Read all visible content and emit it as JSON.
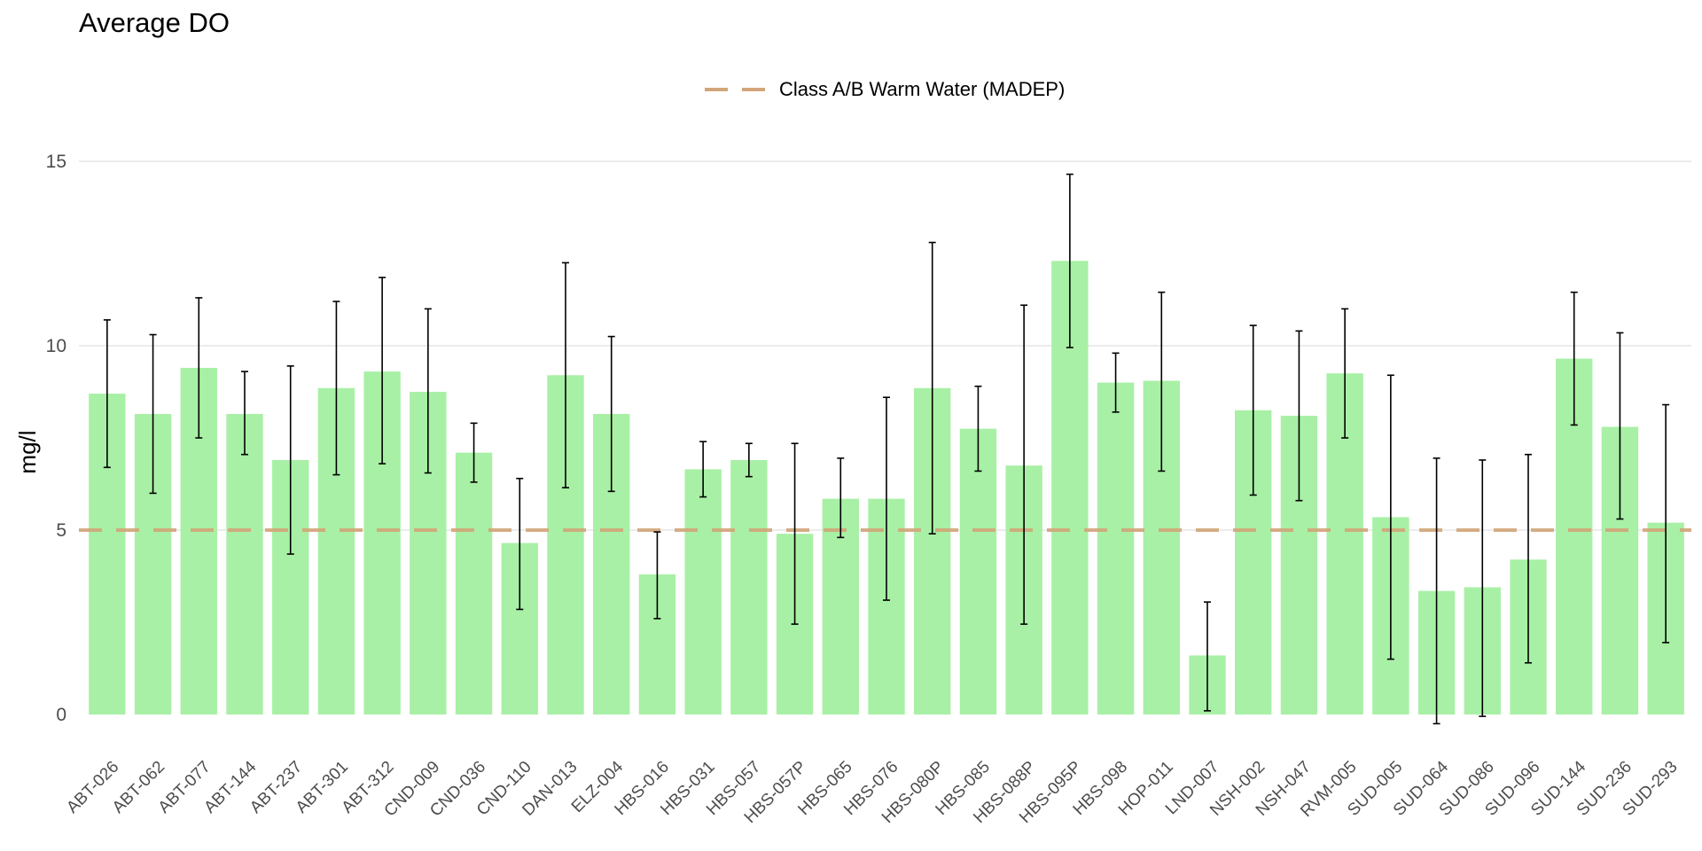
{
  "chart_data": {
    "type": "bar",
    "title": "Average DO",
    "xlabel": "",
    "ylabel": "mg/l",
    "ylim": [
      -0.5,
      15.5
    ],
    "yticks": [
      0,
      5,
      10,
      15
    ],
    "grid": true,
    "legend_position": "top",
    "categories": [
      "ABT-026",
      "ABT-062",
      "ABT-077",
      "ABT-144",
      "ABT-237",
      "ABT-301",
      "ABT-312",
      "CND-009",
      "CND-036",
      "CND-110",
      "DAN-013",
      "ELZ-004",
      "HBS-016",
      "HBS-031",
      "HBS-057",
      "HBS-057P",
      "HBS-065",
      "HBS-076",
      "HBS-080P",
      "HBS-085",
      "HBS-088P",
      "HBS-095P",
      "HBS-098",
      "HOP-011",
      "LND-007",
      "NSH-002",
      "NSH-047",
      "RVM-005",
      "SUD-005",
      "SUD-064",
      "SUD-086",
      "SUD-096",
      "SUD-144",
      "SUD-236",
      "SUD-293"
    ],
    "series": [
      {
        "values": [
          8.7,
          8.15,
          9.4,
          8.15,
          6.9,
          8.85,
          9.3,
          8.75,
          7.1,
          4.65,
          9.2,
          8.15,
          3.8,
          6.65,
          6.9,
          4.9,
          5.85,
          5.85,
          8.85,
          7.75,
          6.75,
          12.3,
          9.0,
          9.05,
          1.6,
          8.25,
          8.1,
          9.25,
          5.35,
          3.35,
          3.45,
          4.2,
          9.65,
          7.8,
          5.2
        ],
        "error_low": [
          6.7,
          6.0,
          7.5,
          7.05,
          4.35,
          6.5,
          6.8,
          6.55,
          6.3,
          2.85,
          6.15,
          6.05,
          2.6,
          5.9,
          6.45,
          2.45,
          4.8,
          3.1,
          4.9,
          6.6,
          2.45,
          9.95,
          8.2,
          6.6,
          0.1,
          5.95,
          5.8,
          7.5,
          1.5,
          -0.25,
          -0.05,
          1.4,
          7.85,
          5.3,
          1.95
        ],
        "error_high": [
          10.7,
          10.3,
          11.3,
          9.3,
          9.45,
          11.2,
          11.85,
          11.0,
          7.9,
          6.4,
          12.25,
          10.25,
          4.95,
          7.4,
          7.35,
          7.35,
          6.95,
          8.6,
          12.8,
          8.9,
          11.1,
          14.65,
          9.8,
          11.45,
          3.05,
          10.55,
          10.4,
          11.0,
          9.2,
          6.95,
          6.9,
          7.05,
          11.45,
          10.35,
          8.4
        ]
      }
    ],
    "reference_lines": [
      {
        "name": "Class A/B Warm Water (MADEP)",
        "value": 5
      }
    ],
    "colors": {
      "bar": "#a8f0a5",
      "error_bar": "#000000",
      "reference_line": "#d2a679",
      "grid": "#e5e5e5"
    }
  }
}
